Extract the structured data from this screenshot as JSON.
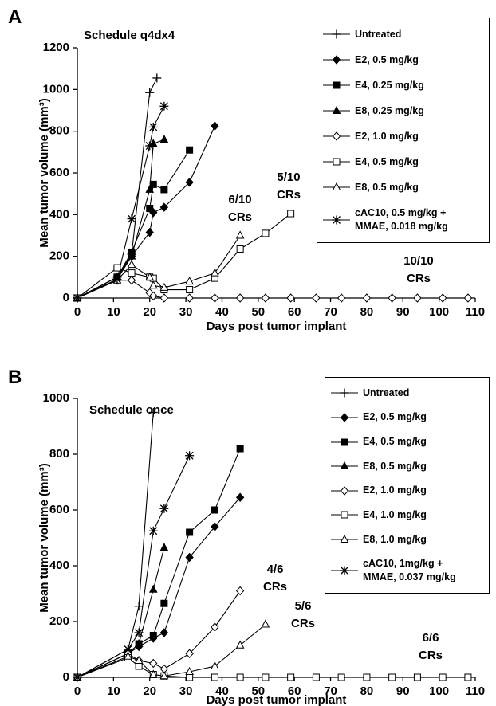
{
  "chart_data": [
    {
      "type": "line",
      "panel_label": "A",
      "title": "Schedule q4dx4",
      "x_label": "Days post tumor implant",
      "y_label": "Mean tumor volume (mm³)",
      "xlim": [
        0,
        110
      ],
      "xticks": [
        0,
        10,
        20,
        30,
        40,
        50,
        60,
        70,
        80,
        90,
        100,
        110
      ],
      "ylim": [
        0,
        1200
      ],
      "yticks": [
        0,
        200,
        400,
        600,
        800,
        1000,
        1200
      ],
      "annotations": [
        "6/10\nCRs",
        "5/10\nCRs",
        "10/10\nCRs"
      ],
      "series": [
        {
          "name": "Untreated",
          "color": "#000000",
          "marker": "plus",
          "x": [
            0,
            11,
            15,
            20,
            22
          ],
          "values": [
            0,
            100,
            210,
            985,
            1055
          ]
        },
        {
          "name": "E2, 0.5 mg/kg",
          "color": "#000000",
          "marker": "diamond",
          "x": [
            0,
            11,
            15,
            20,
            21,
            24,
            31,
            38
          ],
          "values": [
            0,
            90,
            200,
            315,
            410,
            435,
            555,
            825
          ]
        },
        {
          "name": "E4, 0.25 mg/kg",
          "color": "#000000",
          "marker": "square",
          "x": [
            0,
            11,
            15,
            20,
            21,
            24,
            31
          ],
          "values": [
            0,
            100,
            220,
            430,
            545,
            520,
            710
          ]
        },
        {
          "name": "E8, 0.25 mg/kg",
          "color": "#000000",
          "marker": "triangle",
          "x": [
            0,
            11,
            15,
            20,
            21,
            24
          ],
          "values": [
            0,
            100,
            200,
            520,
            740,
            760
          ]
        },
        {
          "name": "E2, 1.0 mg/kg",
          "color": "#000000",
          "marker": "open-diamond",
          "x": [
            0,
            11,
            15,
            20,
            21,
            24,
            31,
            38,
            45,
            52,
            59,
            66,
            73,
            80,
            87,
            94,
            101,
            108
          ],
          "values": [
            0,
            85,
            85,
            25,
            10,
            0,
            0,
            0,
            0,
            0,
            0,
            0,
            0,
            0,
            0,
            0,
            0,
            0
          ]
        },
        {
          "name": "E4, 0.5 mg/kg",
          "color": "#000000",
          "marker": "open-square",
          "x": [
            0,
            11,
            15,
            20,
            21,
            24,
            31,
            38,
            45,
            52,
            59
          ],
          "values": [
            0,
            145,
            120,
            100,
            95,
            40,
            40,
            95,
            235,
            310,
            405
          ]
        },
        {
          "name": "E8, 0.5 mg/kg",
          "color": "#000000",
          "marker": "open-triangle",
          "x": [
            0,
            11,
            15,
            20,
            21,
            24,
            31,
            38,
            45
          ],
          "values": [
            0,
            85,
            160,
            100,
            60,
            50,
            80,
            120,
            300
          ]
        },
        {
          "name": "cAC10, 0.5 mg/kg +\nMMAE, 0.018 mg/kg",
          "color": "#000000",
          "marker": "asterisk",
          "x": [
            0,
            11,
            15,
            20,
            21,
            24
          ],
          "values": [
            0,
            90,
            380,
            730,
            820,
            920
          ]
        }
      ]
    },
    {
      "type": "line",
      "panel_label": "B",
      "title": "Schedule once",
      "x_label": "Days post tumor implant",
      "y_label": "Mean tumor volume (mm³)",
      "xlim": [
        0,
        110
      ],
      "xticks": [
        0,
        10,
        20,
        30,
        40,
        50,
        60,
        70,
        80,
        90,
        100,
        110
      ],
      "ylim": [
        0,
        1000
      ],
      "yticks": [
        0,
        200,
        400,
        600,
        800,
        1000
      ],
      "annotations": [
        "4/6\nCRs",
        "5/6\nCRs",
        "6/6\nCRs"
      ],
      "series": [
        {
          "name": "Untreated",
          "color": "#000000",
          "marker": "plus",
          "x": [
            0,
            14,
            17,
            21
          ],
          "values": [
            0,
            100,
            255,
            950
          ]
        },
        {
          "name": "E2, 0.5 mg/kg",
          "color": "#000000",
          "marker": "diamond",
          "x": [
            0,
            14,
            17,
            21,
            24,
            31,
            38,
            45
          ],
          "values": [
            0,
            85,
            110,
            140,
            160,
            430,
            540,
            645
          ]
        },
        {
          "name": "E4, 0.5 mg/kg",
          "color": "#000000",
          "marker": "square",
          "x": [
            0,
            14,
            17,
            21,
            24,
            31,
            38,
            45
          ],
          "values": [
            0,
            85,
            120,
            150,
            265,
            520,
            600,
            820
          ]
        },
        {
          "name": "E8, 0.5 mg/kg",
          "color": "#000000",
          "marker": "triangle",
          "x": [
            0,
            14,
            17,
            21,
            24
          ],
          "values": [
            0,
            85,
            120,
            315,
            465
          ]
        },
        {
          "name": "E2, 1.0 mg/kg",
          "color": "#000000",
          "marker": "open-diamond",
          "x": [
            0,
            14,
            17,
            21,
            24,
            31,
            38,
            45
          ],
          "values": [
            0,
            85,
            60,
            50,
            30,
            85,
            180,
            310
          ]
        },
        {
          "name": "E4, 1.0 mg/kg",
          "color": "#000000",
          "marker": "open-square",
          "x": [
            0,
            14,
            17,
            21,
            24,
            31,
            38,
            45,
            52,
            59,
            66,
            73,
            80,
            87,
            94,
            101,
            108
          ],
          "values": [
            0,
            70,
            40,
            10,
            5,
            0,
            0,
            0,
            0,
            0,
            0,
            0,
            0,
            0,
            0,
            0,
            0
          ]
        },
        {
          "name": "E8, 1.0 mg/kg",
          "color": "#000000",
          "marker": "open-triangle",
          "x": [
            0,
            14,
            17,
            21,
            24,
            31,
            38,
            45,
            52
          ],
          "values": [
            0,
            75,
            60,
            10,
            5,
            20,
            40,
            115,
            190
          ]
        },
        {
          "name": "cAC10, 1mg/kg +\nMMAE, 0.037 mg/kg",
          "color": "#000000",
          "marker": "asterisk",
          "x": [
            0,
            14,
            17,
            21,
            24,
            31
          ],
          "values": [
            0,
            100,
            160,
            525,
            605,
            795
          ]
        }
      ]
    }
  ]
}
